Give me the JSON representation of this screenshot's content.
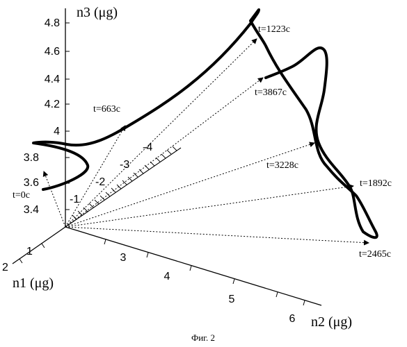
{
  "figure": {
    "caption": "Фиг. 2",
    "axes": {
      "n1_label": "n1 (μg)",
      "n2_label": "n2 (μg)",
      "n3_label": "n3 (μg)",
      "n1_ticks": [
        "-1",
        "-2",
        "-3",
        "-4",
        "1",
        "2"
      ],
      "n2_ticks": [
        "3",
        "4",
        "5",
        "6"
      ],
      "n3_ticks": [
        "3.4",
        "3.6",
        "3.8",
        "4",
        "4.2",
        "4.4",
        "4.6",
        "4.8"
      ]
    },
    "time_labels": [
      "t=0c",
      "t=663c",
      "t=1223c",
      "t=3867c",
      "t=3228c",
      "t=1892c",
      "t=2465c"
    ]
  }
}
